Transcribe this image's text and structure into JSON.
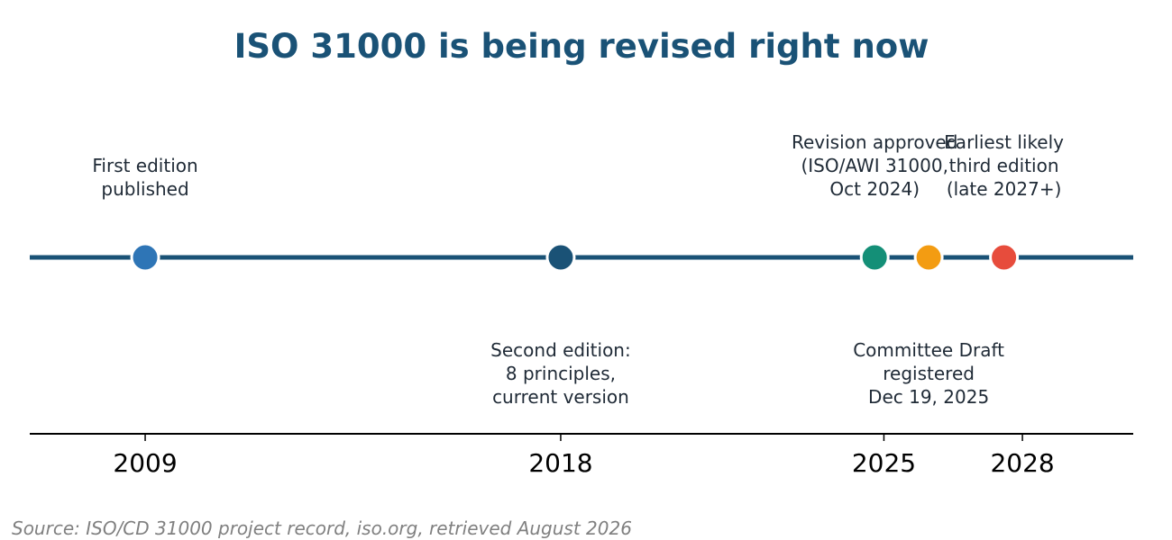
{
  "title": "ISO 31000 is being revised right now",
  "source": "Source: ISO/CD 31000 project record, iso.org, retrieved August 2026",
  "colors": {
    "title": "#1a5276",
    "timeline": "#1a5276",
    "text": "#1f2a36",
    "axis": "#000000",
    "source": "#808080"
  },
  "chart_data": {
    "type": "scatter",
    "title": "ISO 31000 is being revised right now",
    "xlim": [
      2006.5,
      2030.4
    ],
    "x_ticks": [
      2009,
      2018,
      2025,
      2028
    ],
    "x_tick_labels": [
      "2009",
      "2018",
      "2025",
      "2028"
    ],
    "grid": false,
    "events": [
      {
        "year": 2009.0,
        "lines": [
          "First edition",
          "published"
        ],
        "position": "above",
        "color": "#2e75b6"
      },
      {
        "year": 2018.0,
        "lines": [
          "Second edition:",
          "8 principles,",
          "current version"
        ],
        "position": "below",
        "color": "#1a5276"
      },
      {
        "year": 2024.8,
        "lines": [
          "Revision approved",
          "(ISO/AWI 31000,",
          "Oct 2024)"
        ],
        "position": "above",
        "color": "#148f77"
      },
      {
        "year": 2025.97,
        "lines": [
          "Committee Draft",
          "registered",
          "Dec 19, 2025"
        ],
        "position": "below",
        "color": "#f39c12"
      },
      {
        "year": 2027.6,
        "lines": [
          "Earliest likely",
          "third edition",
          "(late 2027+)"
        ],
        "position": "above",
        "color": "#e74c3c"
      }
    ]
  }
}
